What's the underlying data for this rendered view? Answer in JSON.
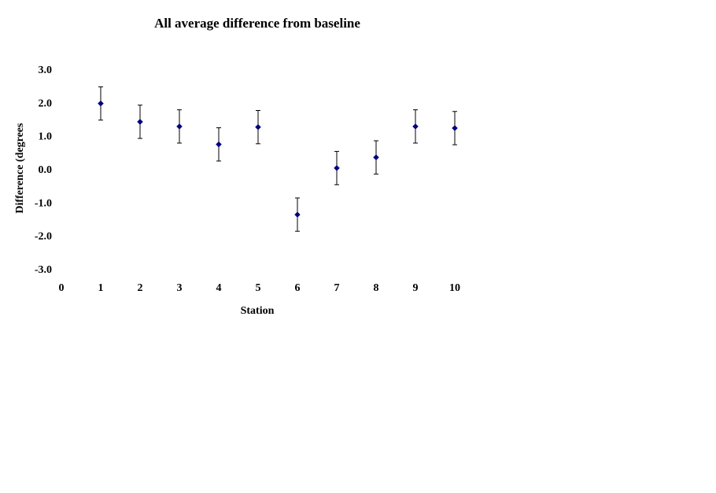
{
  "chart_data": {
    "type": "scatter",
    "title": "All average difference from baseline",
    "xlabel": "Station",
    "ylabel": "Difference (degrees",
    "xlim": [
      0,
      10
    ],
    "ylim": [
      -3.0,
      3.0
    ],
    "xticks": [
      "0",
      "1",
      "2",
      "3",
      "4",
      "5",
      "6",
      "7",
      "8",
      "9",
      "10"
    ],
    "yticks": [
      "3.0",
      "2.0",
      "1.0",
      "0.0",
      "-1.0",
      "-2.0",
      "-3.0"
    ],
    "grid": false,
    "legend": "none",
    "marker": "diamond",
    "error_bars": "symmetric, ±0.5",
    "series_color": "#000080",
    "error_bar_color": "#000000",
    "points": [
      {
        "x": 1,
        "y": 1.97,
        "err": 0.5
      },
      {
        "x": 2,
        "y": 1.42,
        "err": 0.5
      },
      {
        "x": 3,
        "y": 1.28,
        "err": 0.5
      },
      {
        "x": 4,
        "y": 0.74,
        "err": 0.5
      },
      {
        "x": 5,
        "y": 1.26,
        "err": 0.5
      },
      {
        "x": 6,
        "y": -1.37,
        "err": 0.5
      },
      {
        "x": 7,
        "y": 0.03,
        "err": 0.5
      },
      {
        "x": 8,
        "y": 0.35,
        "err": 0.5
      },
      {
        "x": 9,
        "y": 1.28,
        "err": 0.5
      },
      {
        "x": 10,
        "y": 1.23,
        "err": 0.5
      }
    ]
  }
}
